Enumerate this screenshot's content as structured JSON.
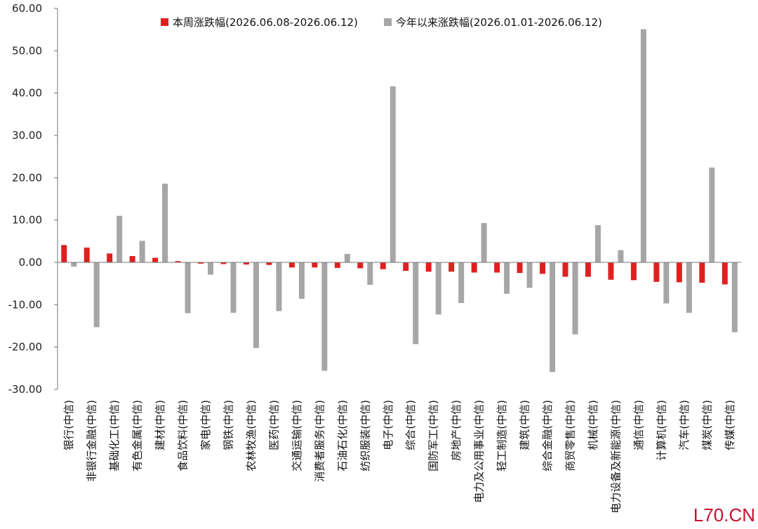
{
  "chart_data": {
    "type": "bar",
    "title": "",
    "xlabel": "",
    "ylabel": "",
    "ylim": [
      -30,
      60
    ],
    "yticks": [
      "60.00",
      "50.00",
      "40.00",
      "30.00",
      "20.00",
      "10.00",
      "0.00",
      "-10.00",
      "-20.00",
      "-30.00"
    ],
    "grid": false,
    "legend_position": "top",
    "categories": [
      "银行(中信)",
      "非银行金融(中信)",
      "基础化工(中信)",
      "有色金属(中信)",
      "建材(中信)",
      "食品饮料(中信)",
      "家电(中信)",
      "钢铁(中信)",
      "农林牧渔(中信)",
      "医药(中信)",
      "交通运输(中信)",
      "消费者服务(中信)",
      "石油石化(中信)",
      "纺织服装(中信)",
      "电子(中信)",
      "综合(中信)",
      "国防军工(中信)",
      "房地产(中信)",
      "电力及公用事业(中信)",
      "轻工制造(中信)",
      "建筑(中信)",
      "综合金融(中信)",
      "商贸零售(中信)",
      "机械(中信)",
      "电力设备及新能源(中信)",
      "通信(中信)",
      "计算机(中信)",
      "汽车(中信)",
      "煤炭(中信)",
      "传媒(中信)"
    ],
    "series": [
      {
        "name": "本周涨跌幅(2026.06.08-2026.06.12)",
        "color": "#e02020",
        "values": [
          4.1,
          3.5,
          2.1,
          1.5,
          1.1,
          0.3,
          -0.3,
          -0.4,
          -0.5,
          -0.6,
          -1.2,
          -1.2,
          -1.3,
          -1.4,
          -1.6,
          -2.0,
          -2.2,
          -2.2,
          -2.4,
          -2.4,
          -2.5,
          -2.7,
          -3.4,
          -3.4,
          -4.1,
          -4.2,
          -4.6,
          -4.7,
          -4.8,
          -5.2
        ]
      },
      {
        "name": "今年以来涨跌幅(2026.01.01-2026.06.12)",
        "color": "#a6a6a6",
        "values": [
          -1.0,
          -15.3,
          11.0,
          5.1,
          18.6,
          -12.0,
          -2.9,
          -11.9,
          -20.2,
          -11.5,
          -8.6,
          -25.6,
          2.0,
          -5.3,
          41.6,
          -19.3,
          -12.3,
          -9.6,
          9.3,
          -7.4,
          -6.0,
          -25.9,
          -17.0,
          8.8,
          2.9,
          55.1,
          -9.7,
          -11.9,
          22.4,
          -16.5
        ]
      }
    ]
  },
  "watermark": "L70.CN"
}
